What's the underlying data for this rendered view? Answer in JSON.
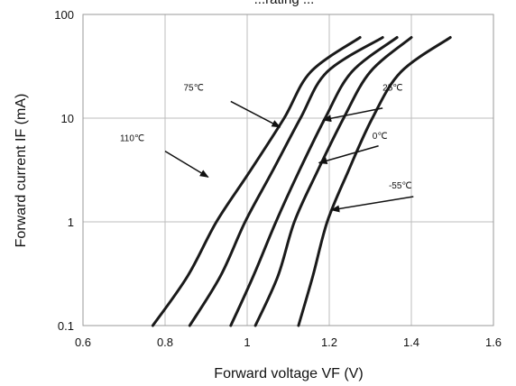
{
  "chart_data": {
    "type": "line",
    "title": "...rating ...",
    "xlabel": "Forward voltage VF (V)",
    "ylabel": "Forward current IF (mA)",
    "x_scale": "linear",
    "y_scale": "log",
    "xlim": [
      0.6,
      1.6
    ],
    "ylim": [
      0.1,
      100
    ],
    "x_ticks": [
      "0.6",
      "0.8",
      "1",
      "1.2",
      "1.4",
      "1.6"
    ],
    "x_tick_values": [
      0.6,
      0.8,
      1.0,
      1.2,
      1.4,
      1.6
    ],
    "y_ticks": [
      "0.1",
      "1",
      "10",
      "100"
    ],
    "y_tick_values": [
      0.1,
      1,
      10,
      100
    ],
    "grid": true,
    "line_color": "#1a1a1a",
    "series": [
      {
        "name": "110℃",
        "points": [
          [
            0.77,
            0.1
          ],
          [
            0.855,
            0.3
          ],
          [
            0.925,
            1.0
          ],
          [
            1.005,
            3.0
          ],
          [
            1.09,
            10.0
          ],
          [
            1.155,
            28.0
          ],
          [
            1.275,
            60.0
          ]
        ]
      },
      {
        "name": "75℃",
        "points": [
          [
            0.86,
            0.1
          ],
          [
            0.935,
            0.3
          ],
          [
            0.995,
            1.0
          ],
          [
            1.06,
            3.0
          ],
          [
            1.13,
            10.0
          ],
          [
            1.195,
            28.0
          ],
          [
            1.33,
            60.0
          ]
        ]
      },
      {
        "name": "25℃",
        "points": [
          [
            0.96,
            0.1
          ],
          [
            1.015,
            0.3
          ],
          [
            1.07,
            1.0
          ],
          [
            1.125,
            3.0
          ],
          [
            1.19,
            10.0
          ],
          [
            1.255,
            28.0
          ],
          [
            1.365,
            60.0
          ]
        ]
      },
      {
        "name": "0℃",
        "points": [
          [
            1.02,
            0.1
          ],
          [
            1.075,
            0.3
          ],
          [
            1.115,
            1.0
          ],
          [
            1.17,
            3.0
          ],
          [
            1.235,
            10.0
          ],
          [
            1.3,
            28.0
          ],
          [
            1.4,
            60.0
          ]
        ]
      },
      {
        "name": "-55℃",
        "points": [
          [
            1.125,
            0.1
          ],
          [
            1.16,
            0.3
          ],
          [
            1.195,
            1.0
          ],
          [
            1.245,
            3.0
          ],
          [
            1.305,
            10.0
          ],
          [
            1.375,
            28.0
          ],
          [
            1.495,
            60.0
          ]
        ]
      }
    ],
    "annotations": [
      {
        "label": "110℃",
        "text_at": [
          0.69,
          6.0
        ],
        "arrow_from": [
          0.8,
          4.8
        ],
        "arrow_to": [
          0.905,
          2.7
        ]
      },
      {
        "label": "75℃",
        "text_at": [
          0.845,
          18.5
        ],
        "arrow_from": [
          0.96,
          14.5
        ],
        "arrow_to": [
          1.08,
          8.2
        ]
      },
      {
        "label": "25℃",
        "text_at": [
          1.33,
          18.5
        ],
        "arrow_from": [
          1.33,
          12.5
        ],
        "arrow_to": [
          1.185,
          9.6
        ]
      },
      {
        "label": "0℃",
        "text_at": [
          1.305,
          6.3
        ],
        "arrow_from": [
          1.32,
          5.4
        ],
        "arrow_to": [
          1.175,
          3.7
        ]
      },
      {
        "label": "-55℃",
        "text_at": [
          1.345,
          2.1
        ],
        "arrow_from": [
          1.405,
          1.75
        ],
        "arrow_to": [
          1.205,
          1.3
        ]
      }
    ]
  }
}
